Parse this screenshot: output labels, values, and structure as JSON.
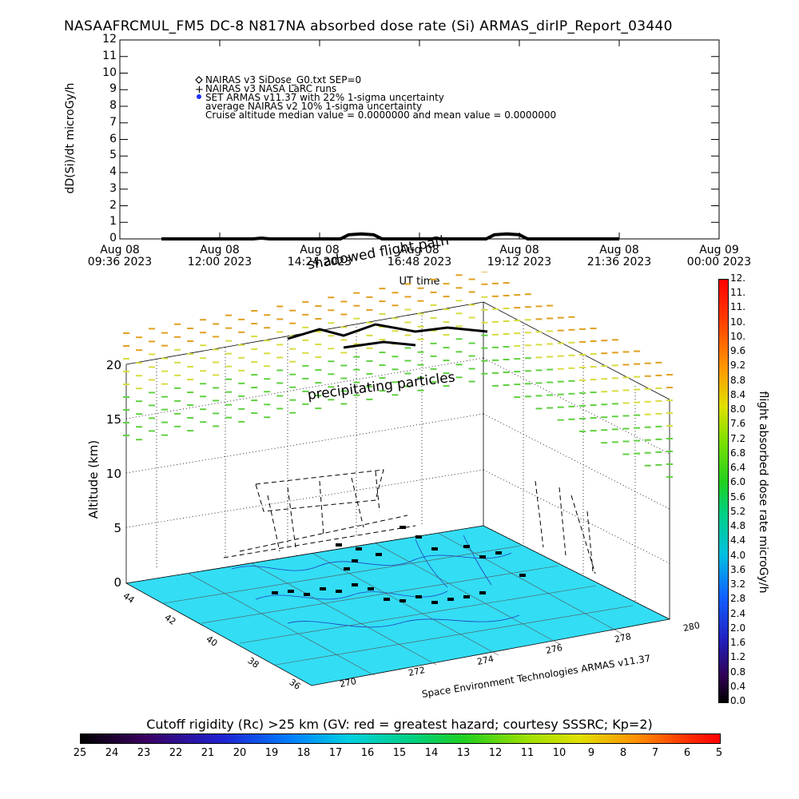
{
  "title": "NASAAFRCMUL_FM5 DC-8   N817NA absorbed dose rate (Si) ARMAS_dirIP_Report_03440",
  "chart_data": [
    {
      "type": "line",
      "ylabel": "dD(Si)/dt microGy/h",
      "xlabel": "UT time",
      "ylim": [
        0,
        12
      ],
      "y_ticks": [
        "0",
        "1",
        "2",
        "3",
        "4",
        "5",
        "6",
        "7",
        "8",
        "9",
        "10",
        "11",
        "12"
      ],
      "x_ticks": [
        {
          "line1": "Aug 08",
          "line2": "09:36 2023"
        },
        {
          "line1": "Aug 08",
          "line2": "12:00 2023"
        },
        {
          "line1": "Aug 08",
          "line2": "14:24 2023"
        },
        {
          "line1": "Aug 08",
          "line2": "16:48 2023"
        },
        {
          "line1": "Aug 08",
          "line2": "19:12 2023"
        },
        {
          "line1": "Aug 08",
          "line2": "21:36 2023"
        },
        {
          "line1": "Aug 09",
          "line2": "00:00 2023"
        }
      ],
      "x_range_hours": [
        0,
        14.4
      ],
      "series": [
        {
          "points": [
            [
              1.0,
              0
            ],
            [
              3.2,
              0
            ],
            [
              3.4,
              0.05
            ],
            [
              3.6,
              0
            ],
            [
              5.3,
              0
            ],
            [
              5.5,
              0.25
            ],
            [
              5.8,
              0.3
            ],
            [
              6.1,
              0.25
            ],
            [
              6.3,
              0
            ],
            [
              7.5,
              0
            ],
            [
              7.6,
              0.05
            ],
            [
              7.7,
              0
            ],
            [
              8.8,
              0
            ],
            [
              9.0,
              0.25
            ],
            [
              9.3,
              0.3
            ],
            [
              9.6,
              0.25
            ],
            [
              9.8,
              0
            ],
            [
              12.0,
              0
            ]
          ]
        }
      ],
      "legend": [
        {
          "symbol": "◇",
          "text": "NAIRAS v3 SiDose_G0.txt SEP=0"
        },
        {
          "symbol": "+",
          "text": "NAIRAS v3 NASA LaRC runs"
        },
        {
          "symbol": "●",
          "text": "SET ARMAS v11.37 with 22% 1-sigma uncertainty",
          "color": "#1a32ff"
        },
        {
          "symbol": "",
          "text": "average NAIRAS v2 10% 1-sigma uncertainty"
        },
        {
          "symbol": "",
          "text": "Cruise altitude median value = 0.0000000 and mean value = 0.0000000"
        }
      ],
      "annotations": [
        "shadowed flight path"
      ]
    },
    {
      "type": "scatter",
      "zlabel": "Altitude (km)",
      "z_ticks": [
        "0",
        "5",
        "10",
        "15",
        "20"
      ],
      "lat_ticks": [
        "44",
        "42",
        "40",
        "38",
        "36"
      ],
      "lon_ticks": [
        "270",
        "272",
        "274",
        "276",
        "278",
        "280"
      ],
      "annotations": [
        "precipitating particles"
      ],
      "credit": "Space Environment Technologies ARMAS v11.37",
      "floor_color": "#33ddf4"
    }
  ],
  "right_colorbar": {
    "label": "flight absorbed dose rate microGy/h",
    "ticks": [
      "0.0",
      "0.4",
      "0.8",
      "1.2",
      "1.6",
      "2.0",
      "2.4",
      "2.8",
      "3.2",
      "3.6",
      "4.0",
      "4.4",
      "4.8",
      "5.2",
      "5.6",
      "6.0",
      "6.4",
      "6.8",
      "7.2",
      "7.6",
      "8.0",
      "8.4",
      "8.8",
      "9.2",
      "9.6",
      "10.",
      "10.",
      "11.",
      "11.",
      "12."
    ]
  },
  "bottom_colorbar": {
    "label": "Cutoff rigidity (Rc) >25 km (GV: red = greatest hazard; courtesy SSSRC; Kp=2)",
    "ticks": [
      "25",
      "24",
      "23",
      "22",
      "21",
      "20",
      "19",
      "18",
      "17",
      "16",
      "15",
      "14",
      "13",
      "12",
      "11",
      "10",
      "9",
      "8",
      "7",
      "6",
      "5"
    ]
  }
}
